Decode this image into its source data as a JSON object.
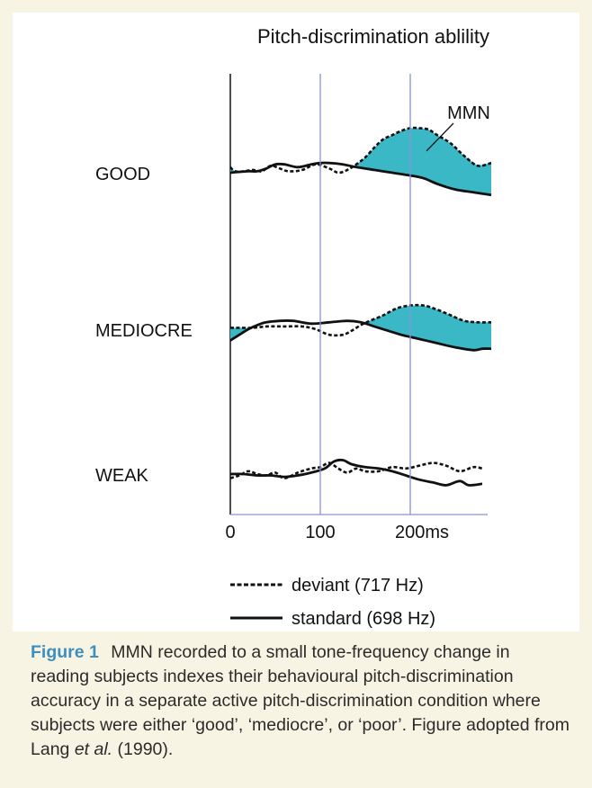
{
  "chart_data": {
    "type": "line",
    "title": "Pitch-discrimination ablility",
    "x_tick_labels": [
      "0",
      "100",
      "200ms"
    ],
    "x_ticks": [
      0,
      100,
      200
    ],
    "xlim": [
      0,
      290
    ],
    "legend": {
      "placement": "bottom",
      "entries": [
        {
          "label": "deviant (717 Hz)",
          "style": "dashed"
        },
        {
          "label": "standard (698 Hz)",
          "style": "solid"
        }
      ]
    },
    "annotation": {
      "text": "MMN",
      "target": "GOOD"
    },
    "mmn_fill_color": "#3bb8c6",
    "gridline_color": "#8c8fd9",
    "panels": [
      {
        "group": "GOOD",
        "mmn_shaded": true,
        "standard": [
          [
            0,
            0
          ],
          [
            20,
            1
          ],
          [
            30,
            1
          ],
          [
            40,
            3
          ],
          [
            50,
            6
          ],
          [
            60,
            6
          ],
          [
            75,
            4
          ],
          [
            90,
            6
          ],
          [
            100,
            7
          ],
          [
            110,
            7
          ],
          [
            125,
            6
          ],
          [
            140,
            4
          ],
          [
            160,
            2
          ],
          [
            180,
            0
          ],
          [
            200,
            -2
          ],
          [
            215,
            -4
          ],
          [
            230,
            -8
          ],
          [
            250,
            -12
          ],
          [
            270,
            -14
          ],
          [
            290,
            -16
          ]
        ],
        "deviant": [
          [
            0,
            4
          ],
          [
            5,
            1
          ],
          [
            15,
            1
          ],
          [
            25,
            2
          ],
          [
            35,
            1
          ],
          [
            45,
            5
          ],
          [
            55,
            3
          ],
          [
            65,
            1
          ],
          [
            80,
            2
          ],
          [
            95,
            6
          ],
          [
            110,
            3
          ],
          [
            120,
            0
          ],
          [
            130,
            2
          ],
          [
            140,
            6
          ],
          [
            150,
            11
          ],
          [
            160,
            18
          ],
          [
            170,
            24
          ],
          [
            180,
            27
          ],
          [
            190,
            30
          ],
          [
            200,
            32
          ],
          [
            210,
            32
          ],
          [
            220,
            31
          ],
          [
            230,
            27
          ],
          [
            245,
            21
          ],
          [
            260,
            12
          ],
          [
            275,
            5
          ],
          [
            290,
            7
          ]
        ]
      },
      {
        "group": "MEDIOCRE",
        "mmn_shaded": true,
        "standard": [
          [
            0,
            -8
          ],
          [
            10,
            -4
          ],
          [
            20,
            0
          ],
          [
            30,
            3
          ],
          [
            40,
            5
          ],
          [
            55,
            6
          ],
          [
            70,
            6
          ],
          [
            90,
            4
          ],
          [
            110,
            5
          ],
          [
            130,
            6
          ],
          [
            145,
            5
          ],
          [
            160,
            2
          ],
          [
            175,
            -1
          ],
          [
            190,
            -4
          ],
          [
            210,
            -7
          ],
          [
            230,
            -10
          ],
          [
            250,
            -13
          ],
          [
            270,
            -15
          ],
          [
            280,
            -14
          ],
          [
            290,
            -14
          ]
        ],
        "deviant": [
          [
            0,
            1
          ],
          [
            10,
            1
          ],
          [
            25,
            1
          ],
          [
            40,
            2
          ],
          [
            60,
            2
          ],
          [
            80,
            2
          ],
          [
            95,
            0
          ],
          [
            110,
            -4
          ],
          [
            125,
            -4
          ],
          [
            135,
            -1
          ],
          [
            145,
            3
          ],
          [
            155,
            6
          ],
          [
            170,
            10
          ],
          [
            185,
            15
          ],
          [
            200,
            17
          ],
          [
            215,
            17
          ],
          [
            230,
            14
          ],
          [
            245,
            10
          ],
          [
            260,
            6
          ],
          [
            275,
            5
          ],
          [
            290,
            5
          ]
        ]
      },
      {
        "group": "WEAK",
        "mmn_shaded": false,
        "standard": [
          [
            0,
            0
          ],
          [
            15,
            0
          ],
          [
            30,
            -1
          ],
          [
            45,
            -1
          ],
          [
            60,
            -2
          ],
          [
            75,
            -1
          ],
          [
            90,
            1
          ],
          [
            105,
            4
          ],
          [
            115,
            9
          ],
          [
            125,
            10
          ],
          [
            135,
            7
          ],
          [
            150,
            5
          ],
          [
            165,
            4
          ],
          [
            180,
            2
          ],
          [
            195,
            -1
          ],
          [
            210,
            -4
          ],
          [
            225,
            -6
          ],
          [
            240,
            -8
          ],
          [
            255,
            -5
          ],
          [
            265,
            -8
          ],
          [
            280,
            -7
          ]
        ],
        "deviant": [
          [
            0,
            -3
          ],
          [
            10,
            -1
          ],
          [
            20,
            2
          ],
          [
            30,
            0
          ],
          [
            40,
            -1
          ],
          [
            50,
            1
          ],
          [
            60,
            -3
          ],
          [
            75,
            1
          ],
          [
            90,
            4
          ],
          [
            100,
            5
          ],
          [
            110,
            8
          ],
          [
            120,
            4
          ],
          [
            130,
            1
          ],
          [
            140,
            4
          ],
          [
            150,
            2
          ],
          [
            165,
            2
          ],
          [
            180,
            5
          ],
          [
            195,
            4
          ],
          [
            210,
            6
          ],
          [
            225,
            8
          ],
          [
            240,
            6
          ],
          [
            255,
            2
          ],
          [
            270,
            5
          ],
          [
            280,
            4
          ]
        ]
      }
    ]
  },
  "caption": {
    "figure_label": "Figure 1",
    "text_before_italic": "MMN recorded to a small tone-frequency change in reading subjects indexes their behavioural pitch-discrimination accuracy in a separate active pitch-discrimination condition where subjects were either ‘good’, ‘mediocre’, or ‘poor’. Figure adopted from Lang",
    "italic": "et al.",
    "text_after_italic": "(1990)."
  }
}
